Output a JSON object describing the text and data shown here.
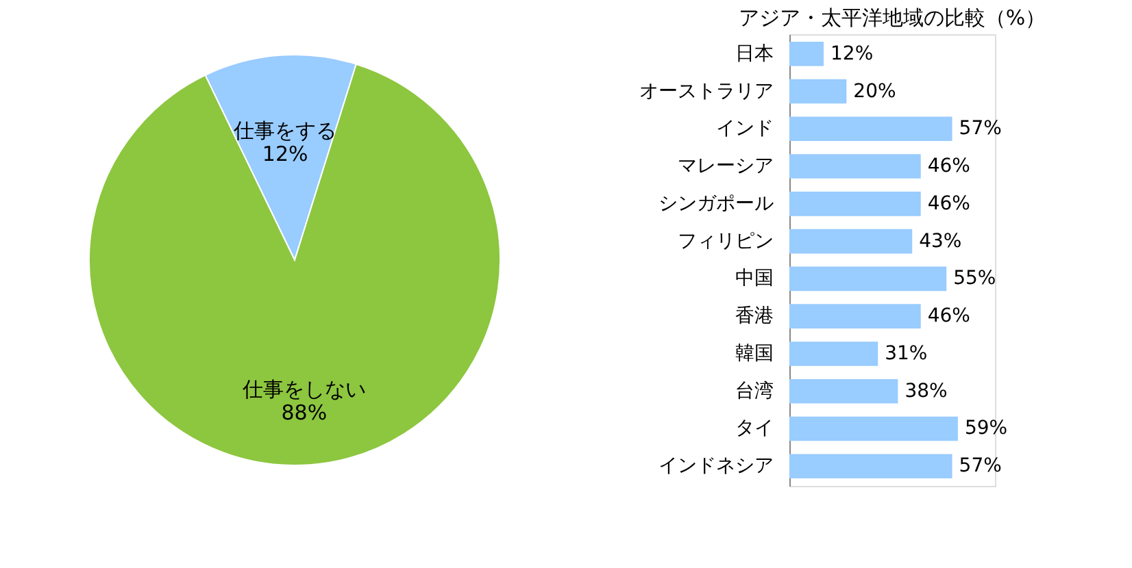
{
  "chart_data": [
    {
      "type": "pie",
      "categories": [
        "仕事をする",
        "仕事をしない"
      ],
      "values": [
        12,
        88
      ],
      "colors": [
        "#99ccff",
        "#8dc63f"
      ],
      "value_labels": [
        "12%",
        "88%"
      ],
      "legend": false
    },
    {
      "type": "bar",
      "title": "アジア・太平洋地域の比較（%）",
      "orientation": "horizontal",
      "categories": [
        "日本",
        "オーストラリア",
        "インド",
        "マレーシア",
        "シンガポール",
        "フィリピン",
        "中国",
        "香港",
        "韓国",
        "台湾",
        "タイ",
        "インドネシア"
      ],
      "values": [
        12,
        20,
        57,
        46,
        46,
        43,
        55,
        46,
        31,
        38,
        59,
        57
      ],
      "color": "#99ccff",
      "value_labels": [
        "12%",
        "20%",
        "57%",
        "46%",
        "46%",
        "43%",
        "55%",
        "46%",
        "31%",
        "38%",
        "59%",
        "57%"
      ],
      "grid": false,
      "tick_labels": "y"
    }
  ]
}
